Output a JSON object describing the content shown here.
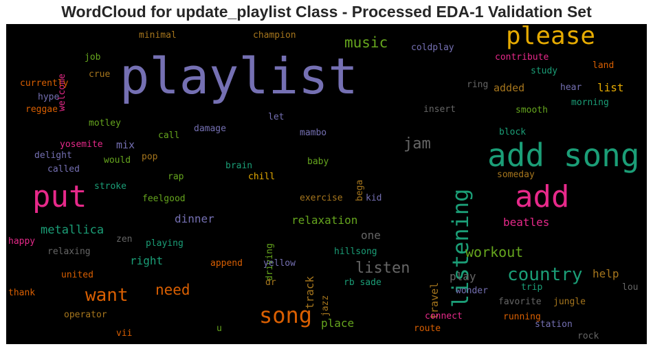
{
  "chart_data": {
    "type": "wordcloud",
    "title": "WordCloud for update_playlist Class - Processed EDA-1 Validation Set",
    "background": "#000000",
    "colormap": "Dark2",
    "words": [
      {
        "text": "playlist",
        "size": 72,
        "color": "#7570b3"
      },
      {
        "text": "add song",
        "size": 46,
        "color": "#1b9e77"
      },
      {
        "text": "put",
        "size": 44,
        "color": "#e7298a"
      },
      {
        "text": "add",
        "size": 44,
        "color": "#e7298a"
      },
      {
        "text": "please",
        "size": 36,
        "color": "#e6ab02"
      },
      {
        "text": "listening",
        "size": 32,
        "color": "#1b9e77",
        "vertical": true
      },
      {
        "text": "song",
        "size": 32,
        "color": "#d95f02"
      },
      {
        "text": "country",
        "size": 26,
        "color": "#1b9e77"
      },
      {
        "text": "want",
        "size": 26,
        "color": "#d95f02"
      },
      {
        "text": "jam",
        "size": 22,
        "color": "#666666"
      },
      {
        "text": "listen",
        "size": 22,
        "color": "#666666"
      },
      {
        "text": "music",
        "size": 21,
        "color": "#66a61e"
      },
      {
        "text": "need",
        "size": 21,
        "color": "#d95f02"
      },
      {
        "text": "workout",
        "size": 20,
        "color": "#66a61e"
      },
      {
        "text": "metallica",
        "size": 17,
        "color": "#1b9e77"
      },
      {
        "text": "relaxation",
        "size": 16,
        "color": "#66a61e"
      },
      {
        "text": "dinner",
        "size": 16,
        "color": "#7570b3"
      },
      {
        "text": "beatles",
        "size": 16,
        "color": "#e7298a"
      },
      {
        "text": "place",
        "size": 16,
        "color": "#66a61e"
      },
      {
        "text": "one",
        "size": 16,
        "color": "#666666"
      },
      {
        "text": "track",
        "size": 16,
        "color": "#a6761d",
        "vertical": true
      },
      {
        "text": "right",
        "size": 16,
        "color": "#1b9e77"
      },
      {
        "text": "play",
        "size": 16,
        "color": "#666666"
      },
      {
        "text": "help",
        "size": 16,
        "color": "#a6761d"
      },
      {
        "text": "list",
        "size": 16,
        "color": "#e6ab02"
      },
      {
        "text": "added",
        "size": 15,
        "color": "#a6761d"
      },
      {
        "text": "travel",
        "size": 15,
        "color": "#a6761d",
        "vertical": true
      },
      {
        "text": "mix",
        "size": 15,
        "color": "#7570b3"
      },
      {
        "text": "coldplay",
        "size": 13,
        "color": "#7570b3"
      },
      {
        "text": "contribute",
        "size": 13,
        "color": "#e7298a"
      },
      {
        "text": "land",
        "size": 13,
        "color": "#d95f02"
      },
      {
        "text": "study",
        "size": 13,
        "color": "#1b9e77"
      },
      {
        "text": "ring",
        "size": 13,
        "color": "#666666"
      },
      {
        "text": "hear",
        "size": 13,
        "color": "#7570b3"
      },
      {
        "text": "morning",
        "size": 13,
        "color": "#1b9e77"
      },
      {
        "text": "insert",
        "size": 13,
        "color": "#666666"
      },
      {
        "text": "smooth",
        "size": 13,
        "color": "#66a61e"
      },
      {
        "text": "block",
        "size": 13,
        "color": "#1b9e77"
      },
      {
        "text": "someday",
        "size": 13,
        "color": "#a6761d"
      },
      {
        "text": "minimal",
        "size": 13,
        "color": "#a6761d"
      },
      {
        "text": "champion",
        "size": 13,
        "color": "#a6761d"
      },
      {
        "text": "welcome",
        "size": 13,
        "color": "#e7298a",
        "vertical": true
      },
      {
        "text": "job",
        "size": 13,
        "color": "#66a61e"
      },
      {
        "text": "crue",
        "size": 13,
        "color": "#a6761d"
      },
      {
        "text": "currently",
        "size": 13,
        "color": "#d95f02"
      },
      {
        "text": "hype",
        "size": 13,
        "color": "#7570b3"
      },
      {
        "text": "reggae",
        "size": 13,
        "color": "#d95f02"
      },
      {
        "text": "motley",
        "size": 13,
        "color": "#66a61e"
      },
      {
        "text": "let",
        "size": 13,
        "color": "#7570b3"
      },
      {
        "text": "call",
        "size": 13,
        "color": "#66a61e"
      },
      {
        "text": "damage",
        "size": 13,
        "color": "#7570b3"
      },
      {
        "text": "mambo",
        "size": 13,
        "color": "#7570b3"
      },
      {
        "text": "yosemite",
        "size": 13,
        "color": "#e7298a"
      },
      {
        "text": "delight",
        "size": 13,
        "color": "#7570b3"
      },
      {
        "text": "pop",
        "size": 13,
        "color": "#a6761d"
      },
      {
        "text": "would",
        "size": 13,
        "color": "#66a61e"
      },
      {
        "text": "called",
        "size": 13,
        "color": "#7570b3"
      },
      {
        "text": "brain",
        "size": 13,
        "color": "#1b9e77"
      },
      {
        "text": "baby",
        "size": 13,
        "color": "#66a61e"
      },
      {
        "text": "bega",
        "size": 13,
        "color": "#a6761d",
        "vertical": true
      },
      {
        "text": "rap",
        "size": 13,
        "color": "#66a61e"
      },
      {
        "text": "chill",
        "size": 13,
        "color": "#e6ab02"
      },
      {
        "text": "stroke",
        "size": 13,
        "color": "#1b9e77"
      },
      {
        "text": "feelgood",
        "size": 13,
        "color": "#66a61e"
      },
      {
        "text": "exercise",
        "size": 13,
        "color": "#a6761d"
      },
      {
        "text": "kid",
        "size": 13,
        "color": "#7570b3"
      },
      {
        "text": "driving",
        "size": 13,
        "color": "#66a61e",
        "vertical": true
      },
      {
        "text": "zen",
        "size": 13,
        "color": "#666666"
      },
      {
        "text": "happy",
        "size": 13,
        "color": "#e7298a"
      },
      {
        "text": "playing",
        "size": 13,
        "color": "#1b9e77"
      },
      {
        "text": "relaxing",
        "size": 13,
        "color": "#666666"
      },
      {
        "text": "hillsong",
        "size": 13,
        "color": "#1b9e77"
      },
      {
        "text": "append",
        "size": 13,
        "color": "#d95f02"
      },
      {
        "text": "yellow",
        "size": 13,
        "color": "#7570b3"
      },
      {
        "text": "united",
        "size": 13,
        "color": "#d95f02"
      },
      {
        "text": "dr",
        "size": 13,
        "color": "#a6761d"
      },
      {
        "text": "jazz",
        "size": 13,
        "color": "#a6761d",
        "vertical": true
      },
      {
        "text": "rb sade",
        "size": 13,
        "color": "#1b9e77"
      },
      {
        "text": "thank",
        "size": 13,
        "color": "#d95f02"
      },
      {
        "text": "trip",
        "size": 13,
        "color": "#1b9e77"
      },
      {
        "text": "wonder",
        "size": 13,
        "color": "#7570b3"
      },
      {
        "text": "lou",
        "size": 13,
        "color": "#666666"
      },
      {
        "text": "favorite",
        "size": 13,
        "color": "#666666"
      },
      {
        "text": "jungle",
        "size": 13,
        "color": "#a6761d"
      },
      {
        "text": "operator",
        "size": 13,
        "color": "#a6761d"
      },
      {
        "text": "connect",
        "size": 13,
        "color": "#e7298a"
      },
      {
        "text": "running",
        "size": 13,
        "color": "#d95f02"
      },
      {
        "text": "station",
        "size": 13,
        "color": "#7570b3"
      },
      {
        "text": "vii",
        "size": 13,
        "color": "#d95f02"
      },
      {
        "text": "u",
        "size": 13,
        "color": "#66a61e"
      },
      {
        "text": "route",
        "size": 13,
        "color": "#d95f02"
      },
      {
        "text": "rock",
        "size": 13,
        "color": "#666666"
      }
    ]
  }
}
